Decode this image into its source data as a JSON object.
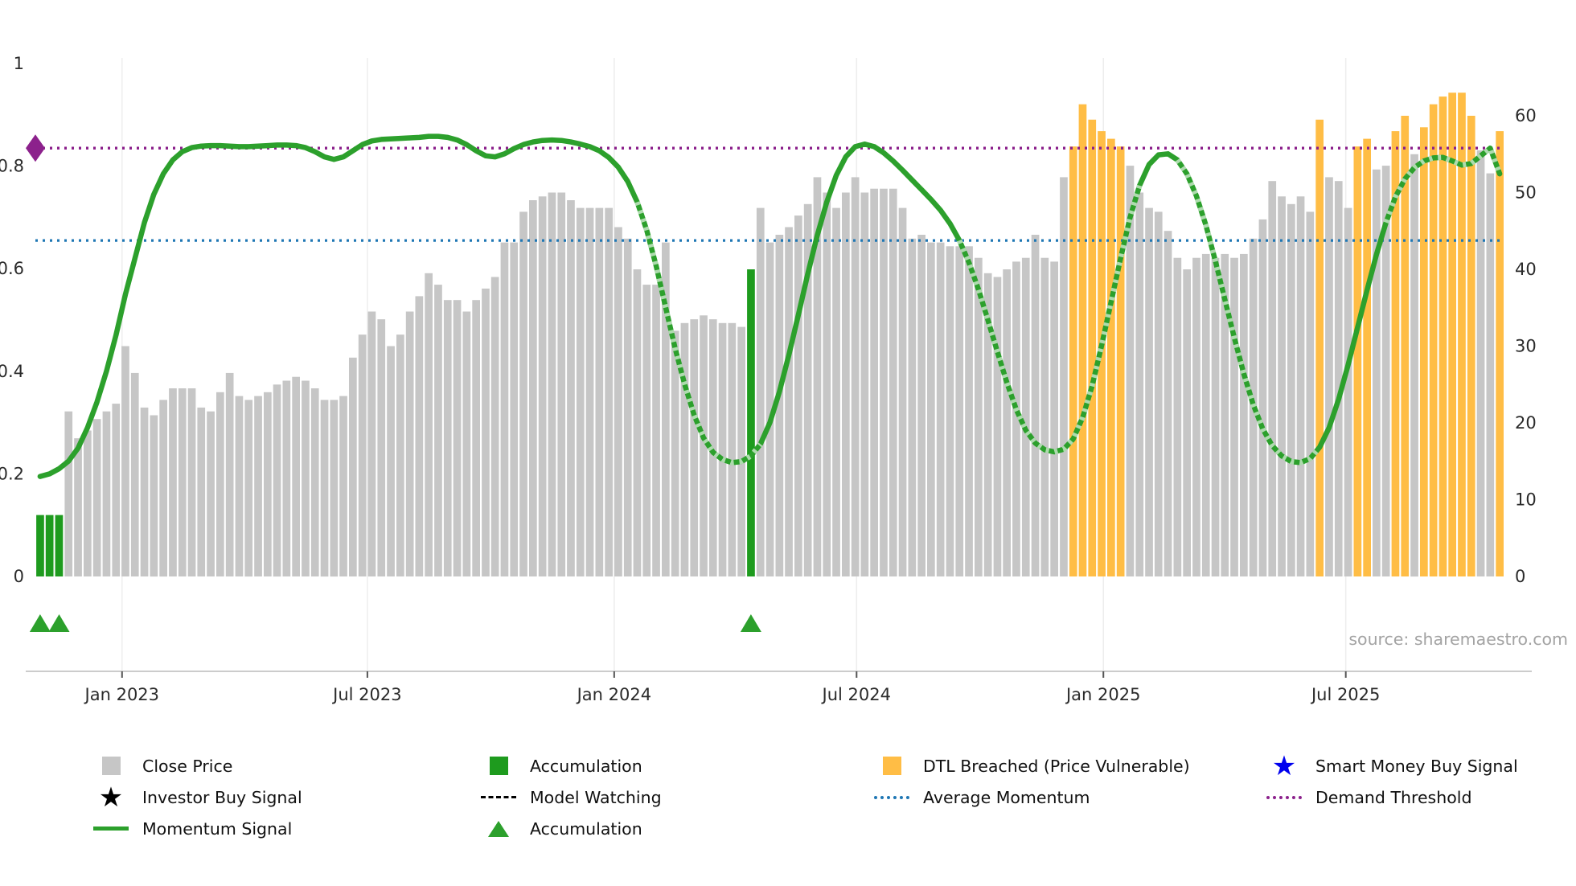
{
  "source": "source: sharemaestro.com",
  "colors": {
    "close": "#c6c6c6",
    "accumulation": "#1e9b1e",
    "dtl": "#ffbd45",
    "smart_money": "#0000ee",
    "investor": "#000000",
    "model_watching": "#000000",
    "average": "#1f77b4",
    "threshold": "#8c218c",
    "momentum": "#2ca02c",
    "accumulation_marker": "#2ca02c",
    "grid": "#ededed",
    "spine": "#cccccc",
    "tick": "#555555"
  },
  "chart_data": {
    "type": "bar+line",
    "x_tick_labels": [
      "Jan 2023",
      "Jul 2023",
      "Jan 2024",
      "Jul 2024",
      "Jan 2025",
      "Jul 2025"
    ],
    "x_tick_positions": [
      0.059,
      0.226,
      0.394,
      0.559,
      0.727,
      0.892
    ],
    "left_axis_ticks": [
      "0",
      "0.2",
      "0.4",
      "0.6",
      "0.8",
      "1"
    ],
    "right_axis_ticks": [
      "0",
      "10",
      "20",
      "30",
      "40",
      "50",
      "60"
    ],
    "left_axis_range": [
      0,
      1
    ],
    "right_axis_range": [
      0,
      66.8
    ],
    "grid": "vertical-light",
    "legend_position": "bottom",
    "bars": {
      "name": "Close Price (right axis)",
      "values": [
        8,
        8,
        8,
        21.5,
        18,
        19,
        20.5,
        21.5,
        22.5,
        30,
        26.5,
        22,
        21,
        23,
        24.5,
        24.5,
        24.5,
        22,
        21.5,
        24,
        26.5,
        23.5,
        23,
        23.5,
        24,
        25,
        25.5,
        26,
        25.5,
        24.5,
        23,
        23,
        23.5,
        28.5,
        31.5,
        34.5,
        33.5,
        30,
        31.5,
        34.5,
        36.5,
        39.5,
        38,
        36,
        36,
        34.5,
        36,
        37.5,
        39,
        43.5,
        43.5,
        47.5,
        49,
        49.5,
        50,
        50,
        49,
        48,
        48,
        48,
        48,
        45.5,
        44,
        40,
        38,
        38,
        43.5,
        32,
        33,
        33.5,
        34,
        33.5,
        33,
        33,
        32.5,
        40,
        48,
        43.5,
        44.5,
        45.5,
        47,
        48.5,
        52,
        50,
        48,
        50,
        52,
        50,
        50.5,
        50.5,
        50.5,
        48,
        44,
        44.5,
        43.5,
        43.5,
        43,
        43,
        43,
        41.5,
        39.5,
        39,
        40,
        41,
        41.5,
        44.5,
        41.5,
        41,
        52,
        56,
        61.5,
        59.5,
        58,
        57,
        56,
        53.5,
        50,
        48,
        47.5,
        45,
        41.5,
        40,
        41.5,
        42,
        41.5,
        42,
        41.5,
        42,
        44,
        46.5,
        51.5,
        49.5,
        48.5,
        49.5,
        47.5,
        59.5,
        52,
        51.5,
        48,
        56,
        57,
        53,
        53.5,
        58,
        60,
        55,
        58.5,
        61.5,
        62.5,
        63,
        63,
        60,
        55.5,
        52.5,
        58
      ],
      "type_runs": [
        [
          0,
          2,
          "A"
        ],
        [
          3,
          74,
          "C"
        ],
        [
          75,
          75,
          "A"
        ],
        [
          76,
          108,
          "C"
        ],
        [
          109,
          114,
          "O"
        ],
        [
          115,
          134,
          "C"
        ],
        [
          135,
          135,
          "O"
        ],
        [
          136,
          138,
          "C"
        ],
        [
          139,
          140,
          "O"
        ],
        [
          141,
          142,
          "C"
        ],
        [
          143,
          144,
          "O"
        ],
        [
          145,
          145,
          "C"
        ],
        [
          146,
          151,
          "O"
        ],
        [
          152,
          153,
          "C"
        ],
        [
          154,
          154,
          "O"
        ]
      ],
      "type_map": {
        "C": "close_price",
        "A": "accumulation",
        "O": "dtl_breached"
      }
    },
    "momentum": {
      "name": "Momentum Signal (left axis)",
      "values": [
        0.195,
        0.2,
        0.21,
        0.225,
        0.25,
        0.29,
        0.34,
        0.4,
        0.47,
        0.55,
        0.62,
        0.69,
        0.745,
        0.785,
        0.812,
        0.828,
        0.836,
        0.839,
        0.84,
        0.84,
        0.839,
        0.838,
        0.838,
        0.839,
        0.84,
        0.841,
        0.841,
        0.84,
        0.836,
        0.828,
        0.818,
        0.813,
        0.818,
        0.83,
        0.842,
        0.849,
        0.852,
        0.853,
        0.854,
        0.855,
        0.856,
        0.858,
        0.858,
        0.856,
        0.851,
        0.842,
        0.83,
        0.82,
        0.818,
        0.824,
        0.834,
        0.842,
        0.847,
        0.85,
        0.851,
        0.85,
        0.847,
        0.843,
        0.838,
        0.83,
        0.817,
        0.798,
        0.77,
        0.73,
        0.675,
        0.605,
        0.525,
        0.445,
        0.375,
        0.315,
        0.27,
        0.242,
        0.228,
        0.222,
        0.224,
        0.235,
        0.258,
        0.3,
        0.36,
        0.432,
        0.51,
        0.59,
        0.665,
        0.73,
        0.782,
        0.818,
        0.838,
        0.843,
        0.838,
        0.826,
        0.81,
        0.792,
        0.773,
        0.754,
        0.735,
        0.714,
        0.688,
        0.655,
        0.612,
        0.56,
        0.5,
        0.438,
        0.378,
        0.325,
        0.285,
        0.26,
        0.247,
        0.243,
        0.248,
        0.268,
        0.31,
        0.372,
        0.45,
        0.535,
        0.62,
        0.7,
        0.762,
        0.803,
        0.822,
        0.824,
        0.812,
        0.785,
        0.742,
        0.685,
        0.615,
        0.54,
        0.465,
        0.395,
        0.335,
        0.288,
        0.255,
        0.235,
        0.224,
        0.222,
        0.23,
        0.252,
        0.29,
        0.345,
        0.412,
        0.485,
        0.558,
        0.628,
        0.69,
        0.74,
        0.775,
        0.797,
        0.81,
        0.816,
        0.817,
        0.81,
        0.802,
        0.805,
        0.82,
        0.835,
        0.785
      ]
    },
    "watch_segments": [
      [
        63,
        76
      ],
      [
        97,
        116
      ],
      [
        120,
        135
      ],
      [
        142,
        154
      ]
    ],
    "accumulation_markers": [
      0,
      2,
      75
    ],
    "average_momentum": 0.655,
    "demand_threshold": 0.835
  },
  "legend": {
    "rows": [
      [
        {
          "label": "Close Price",
          "swatch": "rect",
          "color_key": "close"
        },
        {
          "label": "Accumulation",
          "swatch": "rect",
          "color_key": "accumulation"
        },
        {
          "label": "DTL Breached (Price Vulnerable)",
          "swatch": "rect",
          "color_key": "dtl"
        },
        {
          "label": "Smart Money Buy Signal",
          "swatch": "star",
          "color_key": "smart_money"
        }
      ],
      [
        {
          "label": "Investor Buy Signal",
          "swatch": "star",
          "color_key": "investor"
        },
        {
          "label": "Model Watching",
          "swatch": "dashes",
          "color_key": "model_watching"
        },
        {
          "label": "Average Momentum",
          "swatch": "dotted",
          "color_key": "average"
        },
        {
          "label": "Demand Threshold",
          "swatch": "dotted",
          "color_key": "threshold"
        }
      ],
      [
        {
          "label": "Momentum Signal",
          "swatch": "line",
          "color_key": "momentum"
        },
        {
          "label": "Accumulation",
          "swatch": "triangle",
          "color_key": "accumulation_marker"
        }
      ]
    ]
  }
}
